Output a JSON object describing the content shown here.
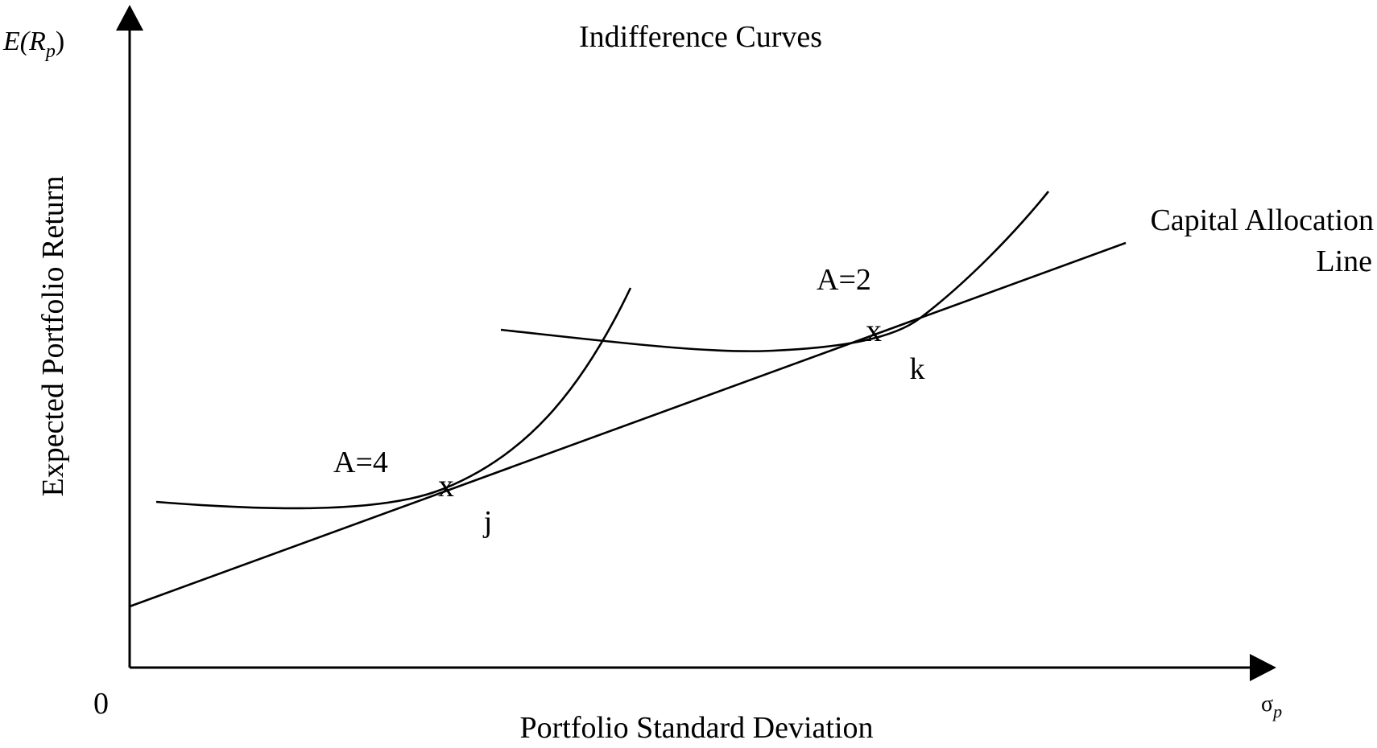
{
  "title": "Indifference Curves",
  "y_axis": {
    "symbol_main": "E(R",
    "symbol_sub": "p",
    "symbol_close": ")",
    "label": "Expected Portfolio Return"
  },
  "x_axis": {
    "symbol_main": "σ",
    "symbol_sub": "p",
    "label": "Portfolio Standard Deviation",
    "origin": "0"
  },
  "cal": {
    "label_line1": "Capital Allocation",
    "label_line2": "Line"
  },
  "curves": [
    {
      "label": "A=4",
      "tangent_marker": "x",
      "point_label": "j"
    },
    {
      "label": "A=2",
      "tangent_marker": "x",
      "point_label": "k"
    }
  ],
  "colors": {
    "ink": "#000000",
    "background": "#ffffff"
  }
}
